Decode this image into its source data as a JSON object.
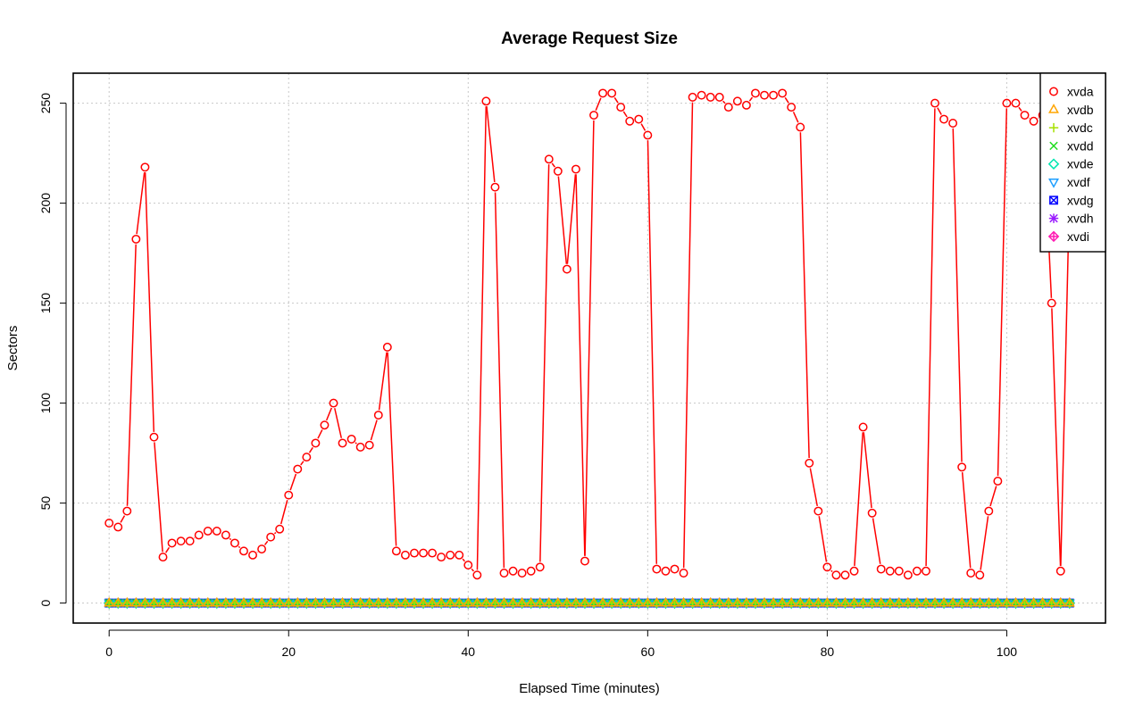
{
  "chart_data": {
    "type": "line",
    "title": "Average Request Size",
    "xlabel": "Elapsed Time (minutes)",
    "ylabel": "Sectors",
    "xlim": [
      -4,
      111
    ],
    "ylim": [
      -10,
      265
    ],
    "x_ticks": [
      0,
      20,
      40,
      60,
      80,
      100
    ],
    "y_ticks": [
      0,
      50,
      100,
      150,
      200,
      250
    ],
    "grid": true,
    "legend_position": "top-right",
    "x_start": 0,
    "x_step": 1,
    "series": [
      {
        "name": "xvda",
        "color": "#ff0000",
        "marker": "circle",
        "values": [
          40,
          38,
          46,
          182,
          218,
          83,
          23,
          30,
          31,
          31,
          34,
          36,
          36,
          34,
          30,
          26,
          24,
          27,
          33,
          37,
          54,
          67,
          73,
          80,
          89,
          100,
          80,
          82,
          78,
          79,
          94,
          128,
          26,
          24,
          25,
          25,
          25,
          23,
          24,
          24,
          19,
          14,
          251,
          208,
          15,
          16,
          15,
          16,
          18,
          222,
          216,
          167,
          217,
          21,
          244,
          255,
          255,
          248,
          241,
          242,
          234,
          17,
          16,
          17,
          15,
          253,
          254,
          253,
          253,
          248,
          251,
          249,
          255,
          254,
          254,
          255,
          248,
          238,
          70,
          46,
          18,
          14,
          14,
          16,
          88,
          45,
          17,
          16,
          16,
          14,
          16,
          16,
          250,
          242,
          240,
          68,
          15,
          14,
          46,
          61,
          250,
          250,
          244,
          241,
          244,
          150,
          16,
          207
        ]
      },
      {
        "name": "xvdb",
        "color": "#ffa500",
        "marker": "triangle-up",
        "constant": 0
      },
      {
        "name": "xvdc",
        "color": "#a6e000",
        "marker": "plus",
        "constant": 0
      },
      {
        "name": "xvdd",
        "color": "#22dd22",
        "marker": "cross",
        "constant": 0
      },
      {
        "name": "xvde",
        "color": "#00e5b0",
        "marker": "diamond",
        "constant": 0
      },
      {
        "name": "xvdf",
        "color": "#1e9fff",
        "marker": "triangle-down",
        "constant": 0
      },
      {
        "name": "xvdg",
        "color": "#0000ff",
        "marker": "square-x",
        "constant": 0
      },
      {
        "name": "xvdh",
        "color": "#9a1aff",
        "marker": "asterisk",
        "constant": 0
      },
      {
        "name": "xvdi",
        "color": "#ff1ab3",
        "marker": "diamond-plus",
        "constant": 0
      }
    ]
  }
}
